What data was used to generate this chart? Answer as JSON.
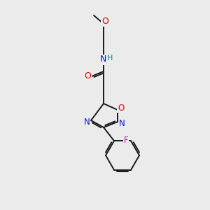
{
  "bg_color": "#ebebeb",
  "bond_color": "#1a1a1a",
  "atom_colors": {
    "O": "#e00000",
    "N": "#1414e0",
    "F": "#cc00cc",
    "H": "#008080",
    "C": "#1a1a1a"
  },
  "figsize": [
    3.0,
    3.0
  ],
  "dpi": 100
}
